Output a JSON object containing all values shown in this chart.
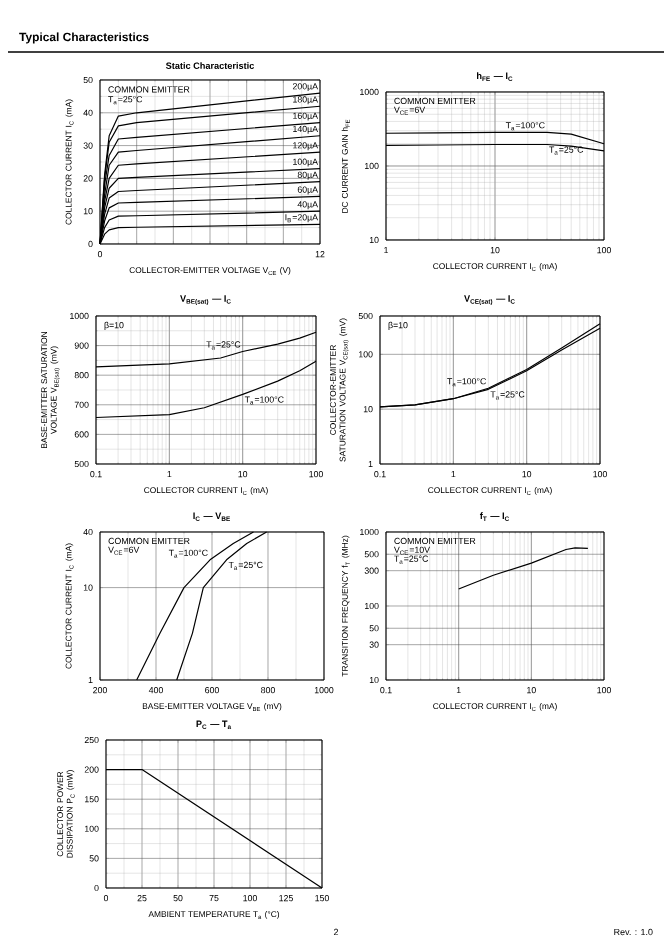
{
  "chart_data": [
    {
      "type": "other",
      "title": "Typical Characteristics",
      "annotations": [
        "2",
        "Rev. : 1.0"
      ]
    },
    {
      "type": "line",
      "title": "Static Characteristic",
      "xlabel": "COLLECTOR-EMITTER VOLTAGE V$_{CE}$ (V)",
      "ylabel": "COLLECTOR CURRENT I$_{C}$ (mA)",
      "xlim": [
        0,
        12
      ],
      "ylim": [
        0,
        50
      ],
      "xticks": [
        0,
        {
          "value": 2,
          "label": null
        },
        {
          "value": 4,
          "label": null
        },
        {
          "value": 6,
          "label": null
        },
        {
          "value": 8,
          "label": null
        },
        {
          "value": 10,
          "label": null
        },
        12
      ],
      "yticks": [
        0,
        10,
        20,
        30,
        40,
        50
      ],
      "grid": true,
      "annotations": [
        "COMMON EMITTER",
        "T$_{a}$=25°C"
      ],
      "x": [
        0,
        0.25,
        0.5,
        1,
        2,
        12
      ],
      "series": [
        {
          "name": "200µA",
          "color": "#000000",
          "values": [
            0,
            21,
            33,
            39,
            40,
            46
          ]
        },
        {
          "name": "180µA",
          "color": "#000000",
          "values": [
            0,
            20,
            31,
            36,
            37,
            42
          ]
        },
        {
          "name": "160µA",
          "color": "#000000",
          "values": [
            0,
            18,
            27,
            32,
            32.5,
            37
          ]
        },
        {
          "name": "140µA",
          "color": "#000000",
          "values": [
            0,
            15,
            24,
            28,
            28.5,
            33
          ]
        },
        {
          "name": "120µA",
          "color": "#000000",
          "values": [
            0,
            13,
            20,
            24,
            24.4,
            28
          ]
        },
        {
          "name": "100µA",
          "color": "#000000",
          "values": [
            0,
            11,
            17,
            20,
            20.3,
            23
          ]
        },
        {
          "name": "80µA",
          "color": "#000000",
          "values": [
            0,
            9,
            14,
            16,
            16.3,
            19
          ]
        },
        {
          "name": "60µA",
          "color": "#000000",
          "values": [
            0,
            7,
            11,
            12.5,
            12.7,
            14.5
          ]
        },
        {
          "name": "40µA",
          "color": "#000000",
          "values": [
            0,
            5,
            7.3,
            8.5,
            8.6,
            10
          ]
        },
        {
          "name": "I$_{B}$=20µA",
          "color": "#000000",
          "values": [
            0,
            3,
            4.3,
            5,
            5.1,
            6
          ]
        }
      ]
    },
    {
      "type": "line",
      "title": "h$_{FE}$ — I$_{C}$",
      "xlabel": "COLLECTOR CURRENT I$_{C}$ (mA)",
      "ylabel": "DC CURRENT GAIN h$_{FE}$",
      "log": "xy",
      "xlim": [
        1,
        100
      ],
      "ylim": [
        10,
        1000
      ],
      "xticks": [
        1,
        10,
        100
      ],
      "yticks": [
        10,
        100,
        1000
      ],
      "grid": true,
      "annotations": [
        "COMMON EMITTER",
        "V$_{CE}$=6V"
      ],
      "series": [
        {
          "name": "T$_{a}$=100°C",
          "color": "#000000",
          "x": [
            1,
            3,
            10,
            30,
            50,
            100
          ],
          "values": [
            277,
            280,
            285,
            285,
            270,
            200
          ]
        },
        {
          "name": "T$_{a}$=25°C",
          "color": "#000000",
          "x": [
            1,
            3,
            10,
            30,
            50,
            100
          ],
          "values": [
            190,
            192,
            195,
            195,
            185,
            160
          ]
        }
      ]
    },
    {
      "type": "line",
      "title": "V$_{BE(sat)}$ — I$_{C}$",
      "xlabel": "COLLECTOR CURRENT I$_{C}$ (mA)",
      "ylabel": "BASE-EMITTER SATURATION VOLTAGE V$_{BE(sat)}$ (mV)",
      "log": "x",
      "xlim": [
        0.1,
        100
      ],
      "ylim": [
        500,
        1000
      ],
      "xticks": [
        0.1,
        1,
        10,
        100
      ],
      "yticks": [
        500,
        600,
        700,
        800,
        900,
        1000
      ],
      "grid": true,
      "annotations": [
        "β=10"
      ],
      "series": [
        {
          "name": "T$_{a}$=25°C",
          "color": "#000000",
          "x": [
            0.1,
            1,
            5,
            10,
            30,
            60,
            100
          ],
          "values": [
            828,
            838,
            858,
            880,
            905,
            925,
            945
          ]
        },
        {
          "name": "T$_{a}$=100°C",
          "color": "#000000",
          "x": [
            0.1,
            1,
            3,
            10,
            30,
            60,
            100
          ],
          "values": [
            657,
            667,
            690,
            735,
            780,
            815,
            847
          ]
        }
      ]
    },
    {
      "type": "line",
      "title": "V$_{CE(sat)}$ — I$_{C}$",
      "xlabel": "COLLECTOR CURRENT I$_{C}$ (mA)",
      "ylabel": "COLLECTOR-EMITTER SATURATION VOLTAGE V$_{CE(sat)}$ (mV)",
      "log": "xy",
      "xlim": [
        0.1,
        100
      ],
      "ylim": [
        1,
        500
      ],
      "xticks": [
        0.1,
        1,
        10,
        100
      ],
      "yticks": [
        1,
        10,
        100,
        500
      ],
      "grid": true,
      "annotations": [
        "β=10"
      ],
      "series": [
        {
          "name": "T$_{a}$=100°C",
          "color": "#000000",
          "x": [
            0.1,
            0.3,
            1,
            3,
            10,
            30,
            100
          ],
          "values": [
            11,
            12,
            15.5,
            24,
            53,
            130,
            360
          ]
        },
        {
          "name": "T$_{a}$=25°C",
          "color": "#000000",
          "x": [
            0.1,
            0.3,
            1,
            3,
            10,
            30,
            100
          ],
          "values": [
            11,
            12,
            15.5,
            23,
            50,
            120,
            300
          ]
        }
      ]
    },
    {
      "type": "line",
      "title": "I$_{C}$ — V$_{BE}$",
      "xlabel": "BASE-EMITTER VOLTAGE V$_{BE}$ (mV)",
      "ylabel": "COLLECTOR CURRENT I$_{C}$ (mA)",
      "log": "y",
      "xlim": [
        200,
        1000
      ],
      "ylim": [
        1,
        40
      ],
      "xticks": [
        200,
        400,
        600,
        800,
        1000
      ],
      "yticks": [
        1,
        10,
        40
      ],
      "grid": true,
      "annotations": [
        "COMMON EMITTER",
        "V$_{CE}$=6V"
      ],
      "series": [
        {
          "name": "T$_{a}$=100°C",
          "color": "#000000",
          "x": [
            331,
            414,
            500,
            593,
            676,
            748
          ],
          "values": [
            1,
            3.2,
            10,
            20,
            30,
            40
          ]
        },
        {
          "name": "T$_{a}$=25°C",
          "color": "#000000",
          "x": [
            474,
            530,
            569,
            652,
            724,
            795
          ],
          "values": [
            1,
            3.2,
            10,
            20,
            30,
            40
          ]
        }
      ]
    },
    {
      "type": "line",
      "title": "f$_{T}$ — I$_{C}$",
      "xlabel": "COLLECTOR CURRENT I$_{C}$ (mA)",
      "ylabel": "TRANSITION FREQUENCY f$_{T}$ (MHz)",
      "log": "xy",
      "xlim": [
        0.1,
        100
      ],
      "ylim": [
        10,
        1000
      ],
      "xticks": [
        0.1,
        1,
        10,
        100
      ],
      "yticks": [
        10,
        30,
        50,
        100,
        300,
        500,
        1000
      ],
      "grid": true,
      "annotations": [
        "COMMON EMITTER",
        "V$_{CE}$=10V",
        "T$_{a}$=25°C"
      ],
      "series": [
        {
          "color": "#000000",
          "x": [
            1,
            3,
            10,
            30,
            40,
            60
          ],
          "values": [
            170,
            260,
            380,
            580,
            610,
            600
          ]
        }
      ]
    },
    {
      "type": "line",
      "title": "P$_{C}$ — T$_{a}$",
      "xlabel": "AMBIENT TEMPERATURE T$_{a}$ (°C)",
      "ylabel": "COLLECTOR POWER DISSIPATION P$_{C}$ (mW)",
      "xlim": [
        0,
        150
      ],
      "ylim": [
        0,
        250
      ],
      "xticks": [
        0,
        25,
        50,
        75,
        100,
        125,
        150
      ],
      "yticks": [
        0,
        50,
        100,
        150,
        200,
        250
      ],
      "grid": true,
      "series": [
        {
          "color": "#000000",
          "x": [
            0,
            25,
            150
          ],
          "values": [
            200,
            200,
            0
          ]
        }
      ]
    }
  ]
}
